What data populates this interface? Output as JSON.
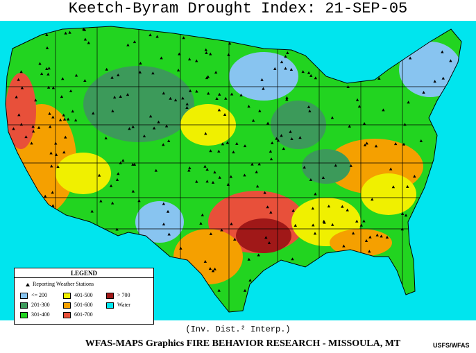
{
  "title": "Keetch-Byram Drought Index:  21-SEP-05",
  "legend": {
    "title": "LEGEND",
    "stations_label": "Reporting Weather Stations",
    "items": [
      {
        "label": "<= 200",
        "color": "#88c4f0"
      },
      {
        "label": "201-300",
        "color": "#3c9a5a"
      },
      {
        "label": "301-400",
        "color": "#22d420"
      },
      {
        "label": "401-500",
        "color": "#f0f000"
      },
      {
        "label": "501-600",
        "color": "#f5a000"
      },
      {
        "label": "601-700",
        "color": "#e8503a"
      },
      {
        "label": "> 700",
        "color": "#a01818"
      },
      {
        "label": "Water",
        "color": "#00e5ee"
      }
    ]
  },
  "interp_note": "(Inv. Dist.² Interp.)",
  "footer": "WFAS-MAPS Graphics  FIRE BEHAVIOR RESEARCH - MISSOULA, MT",
  "credit": "USFS/WFAS",
  "colors": {
    "water": "#00e5ee",
    "land_outside": "#ffffff",
    "station_marker": "#000000"
  }
}
